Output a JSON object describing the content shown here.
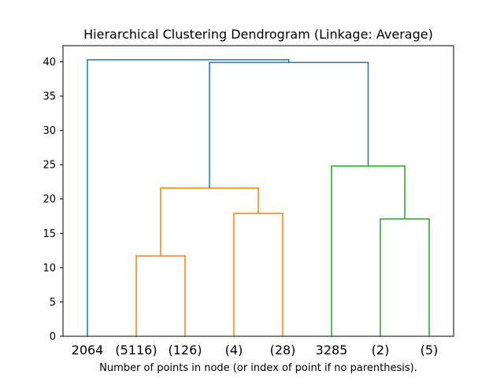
{
  "chart_data": {
    "type": "dendrogram",
    "title": "Hierarchical Clustering Dendrogram (Linkage: Average)",
    "xlabel": "Number of points in node (or index of point if no parenthesis).",
    "ylabel": "",
    "ylim": [
      0,
      42.35
    ],
    "yticks": [
      "0",
      "5",
      "10",
      "15",
      "20",
      "25",
      "30",
      "35",
      "40"
    ],
    "leaves": [
      "2064",
      "(5116)",
      "(126)",
      "(4)",
      "(28)",
      "3285",
      "(2)",
      "(5)"
    ],
    "merges": [
      {
        "left": "leaf:1",
        "right": "leaf:2",
        "height": 11.7,
        "cluster": "orange"
      },
      {
        "left": "leaf:3",
        "right": "leaf:4",
        "height": 17.9,
        "cluster": "orange"
      },
      {
        "left": "leaf:6",
        "right": "leaf:7",
        "height": 17.1,
        "cluster": "green"
      },
      {
        "left": "merge:0",
        "right": "merge:1",
        "height": 21.6,
        "cluster": "orange"
      },
      {
        "left": "leaf:5",
        "right": "merge:2",
        "height": 24.8,
        "cluster": "green"
      },
      {
        "left": "merge:3",
        "right": "merge:4",
        "height": 39.9,
        "cluster": "blue"
      },
      {
        "left": "leaf:0",
        "right": "merge:5",
        "height": 40.3,
        "cluster": "blue"
      }
    ],
    "colors": {
      "blue": "#1f77b4",
      "orange": "#ff7f0e",
      "green": "#2ca02c",
      "axis": "#000000"
    },
    "grid": false
  }
}
